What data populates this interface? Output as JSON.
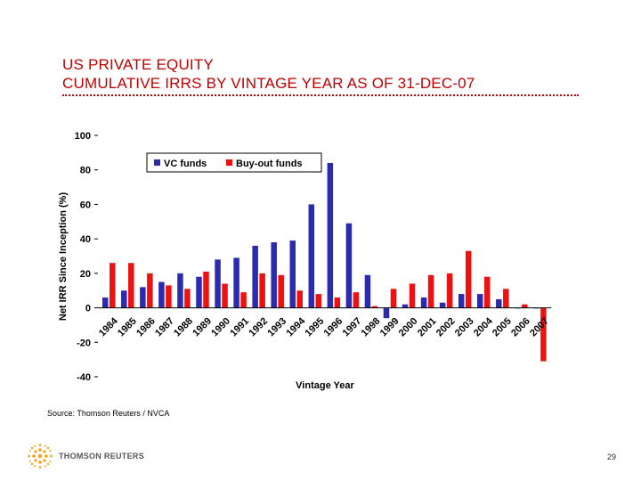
{
  "page": {
    "title_line1": "US PRIVATE EQUITY",
    "title_line2": "CUMULATIVE IRRS BY VINTAGE YEAR AS OF 31-DEC-07",
    "source": "Source: Thomson Reuters / NVCA",
    "logo_text": "THOMSON REUTERS",
    "page_number": "29"
  },
  "colors": {
    "title": "#c00000",
    "vc": "#2b2bb0",
    "buyout": "#ee1111"
  },
  "chart_data": {
    "type": "bar",
    "title": "",
    "xlabel": "Vintage Year",
    "ylabel": "Net IRR Since Inception (%)",
    "ylim": [
      -40,
      100
    ],
    "yticks": [
      -40,
      -20,
      0,
      20,
      40,
      60,
      80,
      100
    ],
    "grid": false,
    "legend_position": "top-center",
    "categories": [
      "1984",
      "1985",
      "1986",
      "1987",
      "1988",
      "1989",
      "1990",
      "1991",
      "1992",
      "1993",
      "1994",
      "1995",
      "1996",
      "1997",
      "1998",
      "1999",
      "2000",
      "2001",
      "2002",
      "2003",
      "2004",
      "2005",
      "2006",
      "2007"
    ],
    "series": [
      {
        "name": "VC funds",
        "color": "#2b2bb0",
        "values": [
          6,
          10,
          12,
          15,
          20,
          18,
          28,
          29,
          36,
          38,
          39,
          60,
          84,
          49,
          19,
          -6,
          2,
          6,
          3,
          8,
          8,
          5,
          0,
          0
        ]
      },
      {
        "name": "Buy-out funds",
        "color": "#ee1111",
        "values": [
          26,
          26,
          20,
          13,
          11,
          21,
          14,
          9,
          20,
          19,
          10,
          8,
          6,
          9,
          1,
          11,
          14,
          19,
          20,
          33,
          18,
          11,
          2,
          -31
        ]
      }
    ]
  }
}
